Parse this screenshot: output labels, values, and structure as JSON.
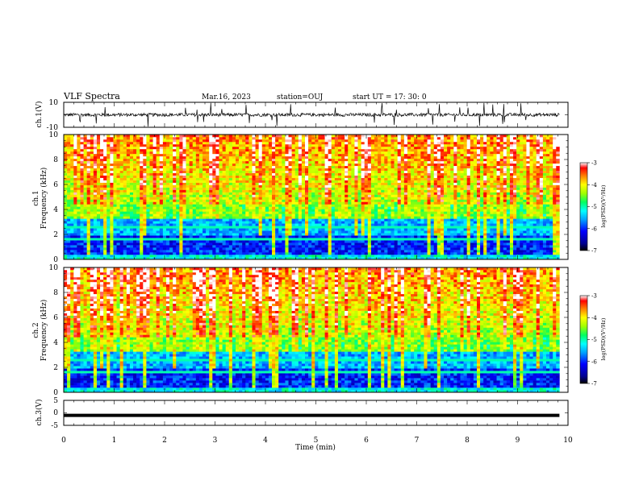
{
  "header": {
    "title": "VLF Spectra",
    "date": "Mar.16, 2023",
    "station": "station=OUJ",
    "start": "start  UT  =   17: 30: 0"
  },
  "chart_data": [
    {
      "type": "line",
      "panel": "ch1-waveform",
      "ylabel": "ch.1(V)",
      "ylim": [
        -10,
        10
      ],
      "yticks": [
        "10",
        "-10"
      ],
      "xlim": [
        0,
        10
      ],
      "data_range_min": [
        0,
        9.83
      ],
      "baseline": 0,
      "description_values": {
        "typical_amplitude_V": [
          -2,
          2
        ],
        "spike_extent_V": [
          -10,
          10
        ]
      }
    },
    {
      "type": "heatmap",
      "panel": "ch1-spectrogram",
      "ylabel_line1": "ch.1",
      "ylabel_line2": "Frequency  (kHz)",
      "ylim": [
        0,
        10
      ],
      "yticks": [
        "0",
        "2",
        "4",
        "6",
        "8",
        "10"
      ],
      "xlim": [
        0,
        10
      ],
      "data_range_min": [
        0,
        9.83
      ],
      "zlim": [
        -7,
        -3
      ],
      "colorbar_label": "log(PSD)(V²/Hz)",
      "colorbar_ticks": [
        "-3",
        "-4",
        "-5",
        "-6",
        "-7"
      ]
    },
    {
      "type": "heatmap",
      "panel": "ch2-spectrogram",
      "ylabel_line1": "ch.2",
      "ylabel_line2": "Frequency  (kHz)",
      "ylim": [
        0,
        10
      ],
      "yticks": [
        "0",
        "2",
        "4",
        "6",
        "8",
        "10"
      ],
      "xlim": [
        0,
        10
      ],
      "data_range_min": [
        0,
        9.83
      ],
      "zlim": [
        -7,
        -3
      ],
      "colorbar_label": "log(PSD)(V²/Hz)",
      "colorbar_ticks": [
        "-3",
        "-4",
        "-5",
        "-6",
        "-7"
      ]
    },
    {
      "type": "line",
      "panel": "ch3-waveform",
      "ylabel": "ch.3(V)",
      "ylim": [
        -5,
        5
      ],
      "yticks": [
        "5",
        "0",
        "-5"
      ],
      "xlim": [
        0,
        10
      ],
      "data_range_min": [
        0,
        9.83
      ],
      "level_V": -1.0,
      "xlabel": "Time  (min)",
      "xticks": [
        "0",
        "1",
        "2",
        "3",
        "4",
        "5",
        "6",
        "7",
        "8",
        "9",
        "10"
      ]
    }
  ],
  "colors": {
    "colormap": [
      "#000080",
      "#0000ff",
      "#00a0ff",
      "#00ffff",
      "#00ff80",
      "#80ff00",
      "#ffff00",
      "#ff8000",
      "#ff0000",
      "#ffffff"
    ]
  }
}
